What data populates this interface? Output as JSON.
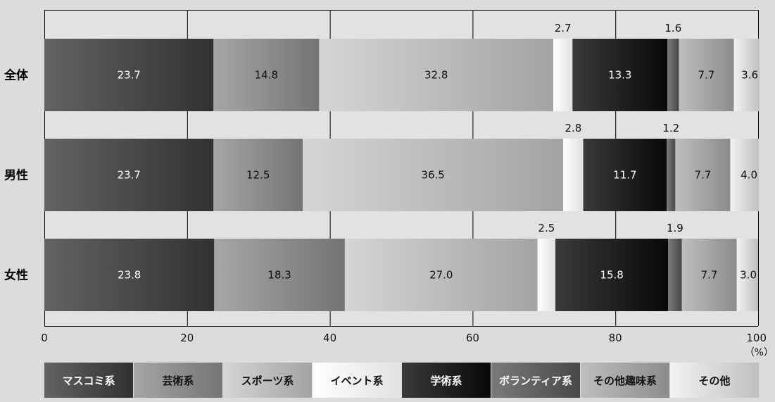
{
  "chart_data": {
    "type": "bar",
    "orientation": "horizontal",
    "stacked": true,
    "categories": [
      "全体",
      "男性",
      "女性"
    ],
    "series": [
      {
        "name": "マスコミ系",
        "values": [
          23.7,
          23.7,
          23.8
        ],
        "labels": [
          "23.7",
          "23.7",
          "23.8"
        ],
        "color": "#474747"
      },
      {
        "name": "芸術系",
        "values": [
          14.8,
          12.5,
          18.3
        ],
        "labels": [
          "14.8",
          "12.5",
          "18.3"
        ],
        "color": "#8a8a8a"
      },
      {
        "name": "スポーツ系",
        "values": [
          32.8,
          36.5,
          27.0
        ],
        "labels": [
          "32.8",
          "36.5",
          "27.0"
        ],
        "color": "#b9b9b9"
      },
      {
        "name": "イベント系",
        "values": [
          2.7,
          2.8,
          2.5
        ],
        "labels": [
          "2.7",
          "2.8",
          "2.5"
        ],
        "color": "#f7f7f7"
      },
      {
        "name": "学術系",
        "values": [
          13.3,
          11.7,
          15.8
        ],
        "labels": [
          "13.3",
          "11.7",
          "15.8"
        ],
        "color": "#1e1e1e"
      },
      {
        "name": "ボランティア系",
        "values": [
          1.6,
          1.2,
          1.9
        ],
        "labels": [
          "1.6",
          "1.2",
          "1.9"
        ],
        "color": "#5e5e5e"
      },
      {
        "name": "その他趣味系",
        "values": [
          7.7,
          7.7,
          7.7
        ],
        "labels": [
          "7.7",
          "7.7",
          "7.7"
        ],
        "color": "#a2a2a2"
      },
      {
        "name": "その他",
        "values": [
          3.6,
          4.0,
          3.0
        ],
        "labels": [
          "3.6",
          "4.0",
          "3.0"
        ],
        "color": "#d6d6d6"
      }
    ],
    "x_ticks": [
      "0",
      "20",
      "40",
      "60",
      "80",
      "100"
    ],
    "xlim": [
      0,
      100
    ],
    "unit_label": "（%）",
    "grid": true,
    "legend_position": "bottom",
    "colors": {
      "background": "#dcdcdc",
      "row_background": "#e2e2e2",
      "grid": "#000000"
    }
  }
}
